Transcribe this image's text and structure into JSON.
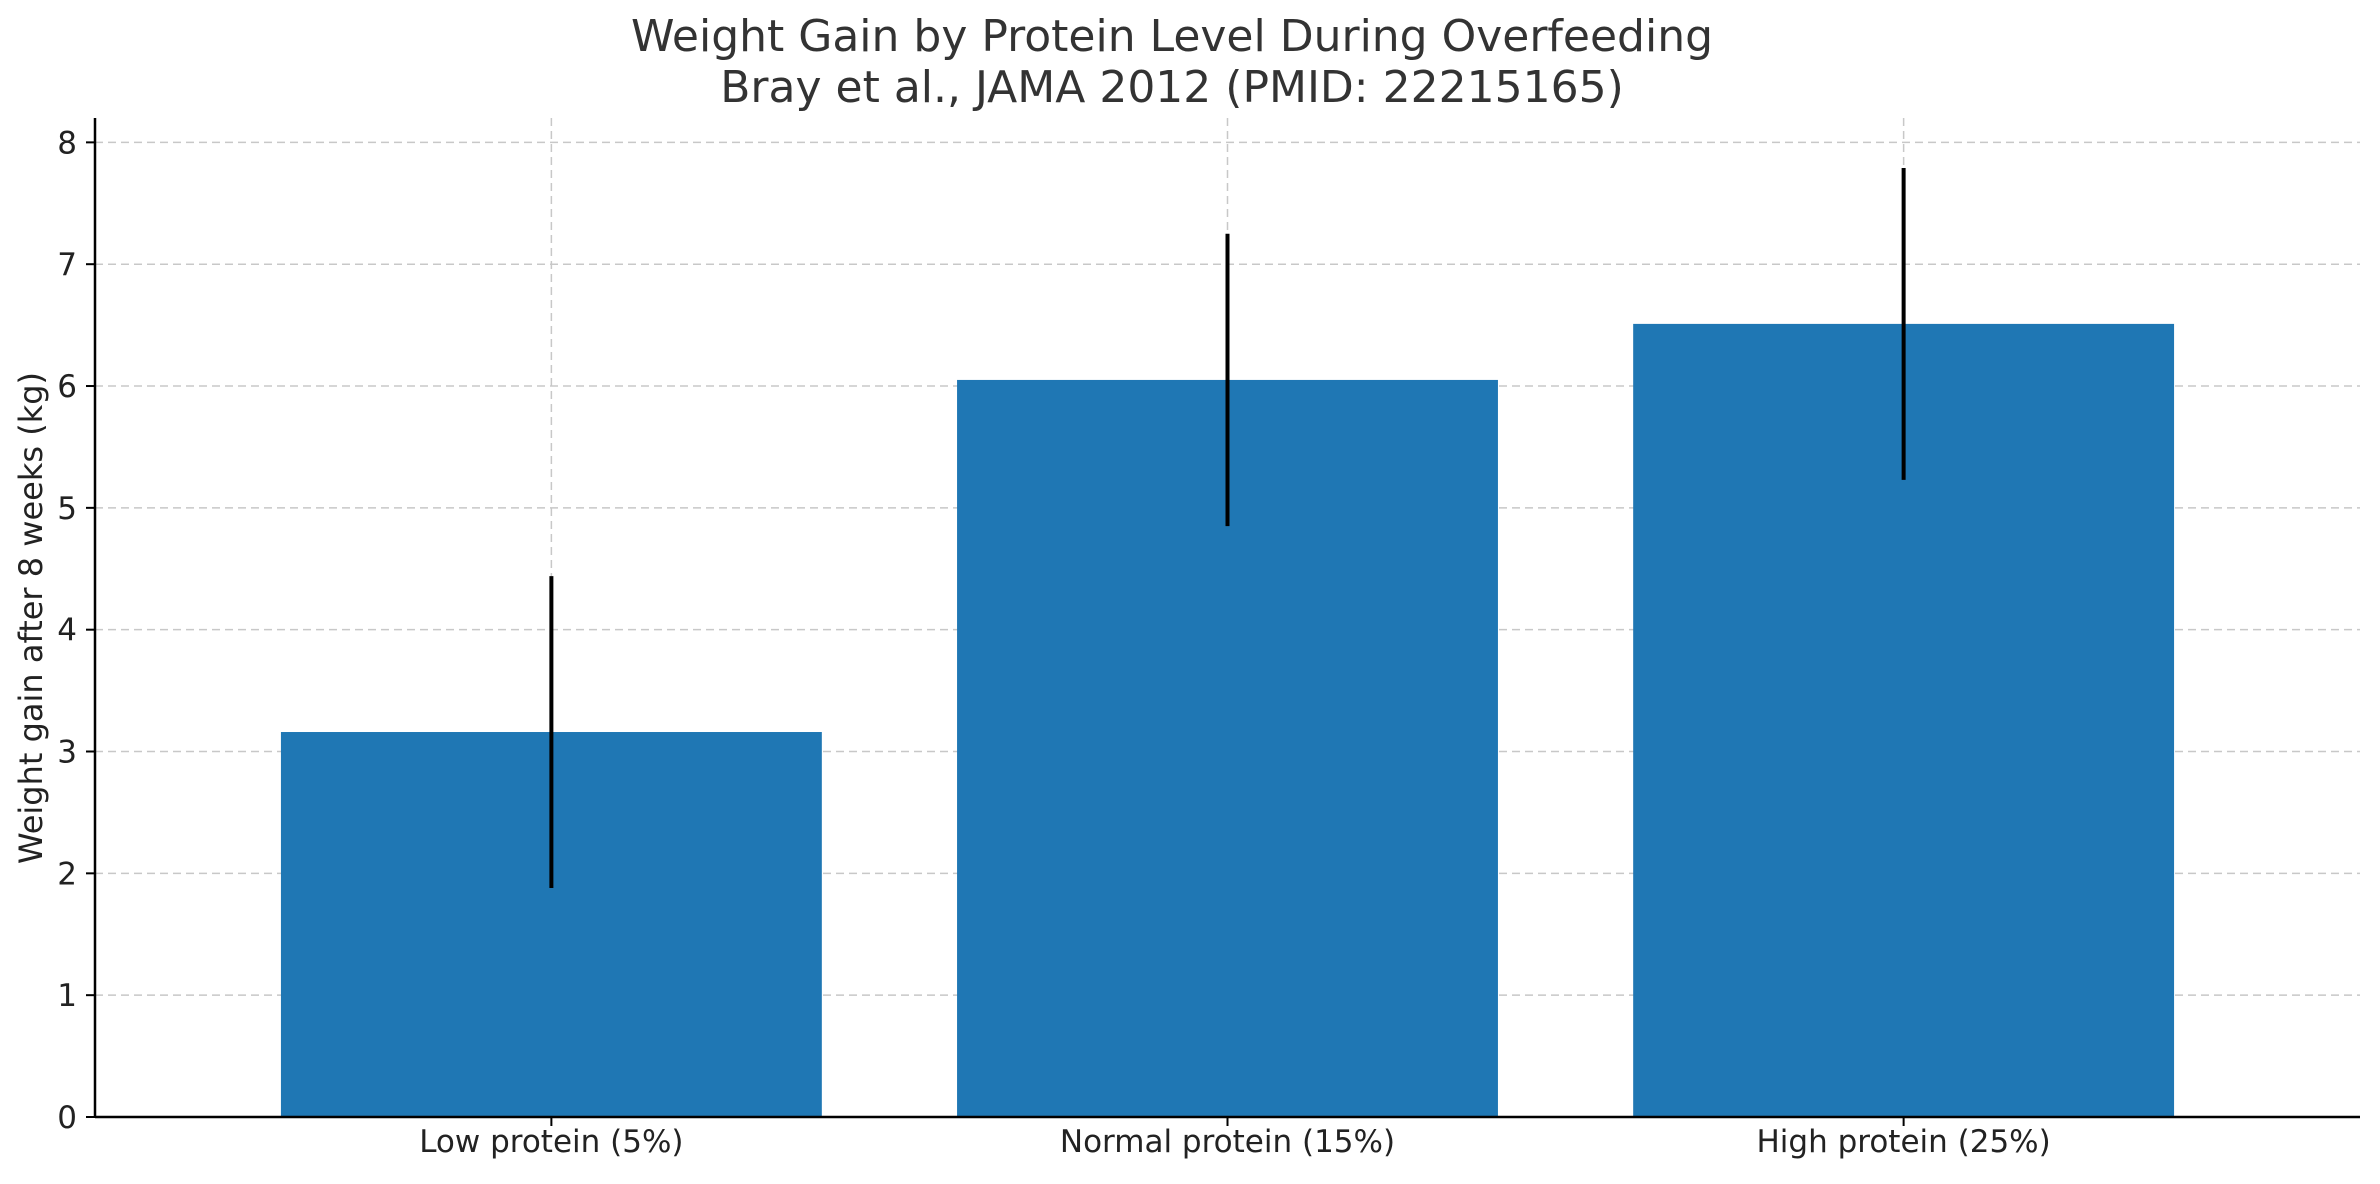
{
  "chart_data": {
    "type": "bar",
    "title": "Weight Gain by Protein Level During Overfeeding",
    "subtitle": "Bray et al., JAMA 2012 (PMID: 22215165)",
    "xlabel": "",
    "ylabel": "Weight gain after 8 weeks (kg)",
    "categories": [
      "Low protein (5%)",
      "Normal protein (15%)",
      "High protein (25%)"
    ],
    "values": [
      3.16,
      6.05,
      6.51
    ],
    "error": [
      1.28,
      1.2,
      1.28
    ],
    "ylim": [
      0,
      8.2
    ],
    "yticks": [
      0,
      1,
      2,
      3,
      4,
      5,
      6,
      7,
      8
    ],
    "grid": true,
    "bar_color": "#1f77b4",
    "error_color": "#000000"
  }
}
